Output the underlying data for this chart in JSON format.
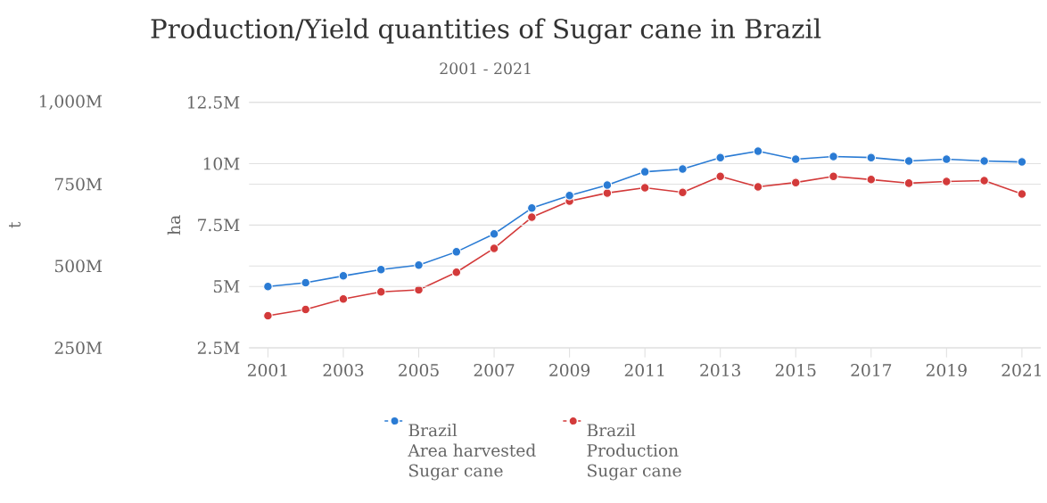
{
  "chart_data": {
    "type": "line",
    "title": "Production/Yield quantities of Sugar cane in Brazil",
    "subtitle": "2001 - 2021",
    "ylabel": "t",
    "y2label": "ha",
    "x": [
      2001,
      2002,
      2003,
      2004,
      2005,
      2006,
      2007,
      2008,
      2009,
      2010,
      2011,
      2012,
      2013,
      2014,
      2015,
      2016,
      2017,
      2018,
      2019,
      2020,
      2021
    ],
    "series": [
      {
        "name": "Brazil\nArea harvested\nSugar cane",
        "color": "#2a7bd4",
        "axis": "y2",
        "values": [
          5000000,
          5150000,
          5430000,
          5690000,
          5870000,
          6410000,
          7140000,
          8190000,
          8700000,
          9130000,
          9670000,
          9780000,
          10250000,
          10510000,
          10180000,
          10290000,
          10250000,
          10110000,
          10180000,
          10110000,
          10070000
        ]
      },
      {
        "name": "Brazil\nProduction\nSugar cane",
        "color": "#d33a3a",
        "values": [
          348000000,
          367000000,
          399000000,
          421000000,
          427000000,
          481000000,
          554000000,
          649000000,
          698000000,
          723000000,
          739000000,
          725000000,
          774000000,
          742000000,
          755000000,
          774000000,
          764000000,
          753000000,
          758000000,
          761000000,
          720000000
        ]
      }
    ],
    "xlim": [
      2000.5,
      2021.5
    ],
    "xticks": [
      2001,
      2003,
      2005,
      2007,
      2009,
      2011,
      2013,
      2015,
      2017,
      2019,
      2021
    ],
    "ylim": [
      250000000,
      1000000000
    ],
    "yticks": [
      {
        "value": 250000000,
        "label": "250M"
      },
      {
        "value": 500000000,
        "label": "500M"
      },
      {
        "value": 750000000,
        "label": "750M"
      },
      {
        "value": 1000000000,
        "label": "1,000M"
      }
    ],
    "y2lim": [
      2500000,
      12500000
    ],
    "y2ticks": [
      {
        "value": 2500000,
        "label": "2.5M"
      },
      {
        "value": 5000000,
        "label": "5M"
      },
      {
        "value": 7500000,
        "label": "7.5M"
      },
      {
        "value": 10000000,
        "label": "10M"
      },
      {
        "value": 12500000,
        "label": "12.5M"
      }
    ],
    "grid": "y",
    "legend": "bottom",
    "marker": "circle",
    "line_style": "solid"
  }
}
